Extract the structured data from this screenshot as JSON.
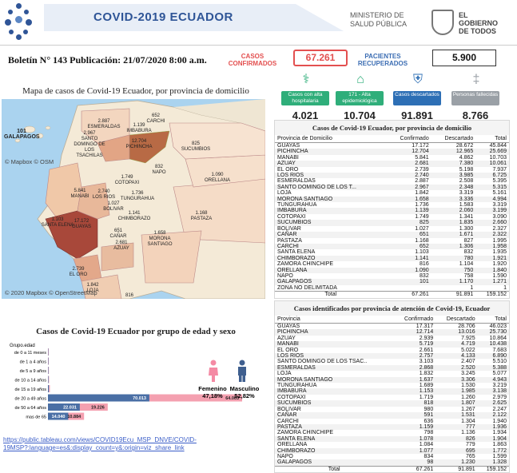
{
  "header": {
    "banner_title": "COVID-2019 ECUADOR",
    "ministry_line1": "MINISTERIO DE",
    "ministry_line2": "SALUD PÚBLICA",
    "gov_line1": "EL",
    "gov_line2": "GOBIERNO",
    "gov_line3": "DE TODOS",
    "bulletin": "Boletín N° 143  Publicación: 21/07/2020 8:00 a.m.",
    "casos_label": "CASOS CONFIRMADOS",
    "casos_value": "67.261",
    "recuperados_label": "PACIENTES RECUPERADOS",
    "recuperados_value": "5.900"
  },
  "stats": [
    {
      "label": "Casos con alta hospitalaria",
      "value": "4.021",
      "color": "#2fae7a",
      "icon": "hospital-icon"
    },
    {
      "label": "171 - Alta epidemiológica",
      "value": "10.704",
      "color": "#2fae7a",
      "icon": "home-icon"
    },
    {
      "label": "Casos descartados",
      "value": "91.891",
      "color": "#2d6fb5",
      "icon": "shield-icon"
    },
    {
      "label": "Personas fallecidas",
      "value": "8.766",
      "color": "#9aa0a6",
      "icon": "ribbon-icon"
    }
  ],
  "map": {
    "title": "Mapa de casos de Covid-19 Ecuador, por provincia de domicilio",
    "attribution_top": "© Mapbox © OSM",
    "attribution_bottom": "© 2020 Mapbox © OpenStreetMap",
    "labels": [
      {
        "name": "ESMERALDAS",
        "value": "2.887"
      },
      {
        "name": "CARCHI",
        "value": "652"
      },
      {
        "name": "IMBABURA",
        "value": "1.139"
      },
      {
        "name": "SUCUMBIOS",
        "value": "825"
      },
      {
        "name": "PICHINCHA",
        "value": "12.704"
      },
      {
        "name": "SANTO DOMINGO DE LOS TSACHILAS",
        "value": "2.967"
      },
      {
        "name": "NAPO",
        "value": "832"
      },
      {
        "name": "ORELLANA",
        "value": "1.090"
      },
      {
        "name": "MANABI",
        "value": "5.841"
      },
      {
        "name": "COTOPAXI",
        "value": "1.749"
      },
      {
        "name": "TUNGURAHUA",
        "value": "1.736"
      },
      {
        "name": "LOS RIOS",
        "value": "2.740"
      },
      {
        "name": "BOLIVAR",
        "value": "1.027"
      },
      {
        "name": "PASTAZA",
        "value": "1.168"
      },
      {
        "name": "GALAPAGOS",
        "value": "101"
      },
      {
        "name": "SANTA ELENA",
        "value": "1.103"
      },
      {
        "name": "GUAYAS",
        "value": "17.172"
      },
      {
        "name": "CHIMBORAZO",
        "value": "1.141"
      },
      {
        "name": "CAÑAR",
        "value": "651"
      },
      {
        "name": "MORONA SANTIAGO",
        "value": "1.658"
      },
      {
        "name": "AZUAY",
        "value": "2.681"
      },
      {
        "name": "EL ORO",
        "value": "2.739"
      },
      {
        "name": "LOJA",
        "value": "1.842"
      },
      {
        "name": "ZAMORA CHINCHIPE",
        "value": "816"
      }
    ]
  },
  "age_chart": {
    "title": "Casos de  Covid-19 Ecuador por grupo de edad y sexo",
    "group_header": "Grupo.edad",
    "female_label": "Femenino",
    "female_pct": "47,18%",
    "male_label": "Masculino",
    "male_pct": "52,82%",
    "chart_data": {
      "type": "bar",
      "categories": [
        "de 0 a 11 meses",
        "de 1 a 4 años",
        "de 5 a 9 años",
        "de 10 a 14 años",
        "de 15 a 19 años",
        "de 20 a 49 años",
        "de 50 a 64 años",
        "mas de 65"
      ],
      "series": [
        {
          "name": "Masculino",
          "color": "#4a6fa5",
          "values": [
            250,
            300,
            350,
            400,
            700,
            70013,
            22031,
            14040
          ]
        },
        {
          "name": "Femenino",
          "color": "#f4a0b0",
          "values": [
            200,
            250,
            300,
            380,
            650,
            64003,
            19226,
            10884
          ]
        }
      ],
      "data_labels": [
        "70.013",
        "64.003",
        "22.031",
        "19.226",
        "14.040",
        "10.884"
      ]
    }
  },
  "link": "https://public.tableau.com/views/COVID19Ecu_MSP_DNVE/COVID-19MSP?:language=es&:display_count=y&:origin=viz_share_link",
  "table1": {
    "title": "Casos de Covid-19 Ecuador,  por provincia de domicilio",
    "columns": [
      "Provincia de Domicilio",
      "Confirmado",
      "Descartado",
      "Total"
    ],
    "rows": [
      [
        "GUAYAS",
        "17.172",
        "28.672",
        "45.844"
      ],
      [
        "PICHINCHA",
        "12.704",
        "12.965",
        "25.669"
      ],
      [
        "MANABI",
        "5.841",
        "4.862",
        "10.703"
      ],
      [
        "AZUAY",
        "2.681",
        "7.380",
        "10.061"
      ],
      [
        "EL ORO",
        "2.739",
        "5.198",
        "7.937"
      ],
      [
        "LOS RIOS",
        "2.740",
        "3.985",
        "6.725"
      ],
      [
        "ESMERALDAS",
        "2.887",
        "2.508",
        "5.395"
      ],
      [
        "SANTO DOMINGO DE LOS T...",
        "2.967",
        "2.348",
        "5.315"
      ],
      [
        "LOJA",
        "1.842",
        "3.319",
        "5.161"
      ],
      [
        "MORONA SANTIAGO",
        "1.658",
        "3.336",
        "4.994"
      ],
      [
        "TUNGURAHUA",
        "1.736",
        "1.583",
        "3.319"
      ],
      [
        "IMBABURA",
        "1.139",
        "2.060",
        "3.199"
      ],
      [
        "COTOPAXI",
        "1.749",
        "1.341",
        "3.090"
      ],
      [
        "SUCUMBIOS",
        "825",
        "1.835",
        "2.660"
      ],
      [
        "BOLIVAR",
        "1.027",
        "1.300",
        "2.327"
      ],
      [
        "CAÑAR",
        "651",
        "1.671",
        "2.322"
      ],
      [
        "PASTAZA",
        "1.168",
        "827",
        "1.995"
      ],
      [
        "CARCHI",
        "652",
        "1.306",
        "1.958"
      ],
      [
        "SANTA ELENA",
        "1.103",
        "832",
        "1.935"
      ],
      [
        "CHIMBORAZO",
        "1.141",
        "780",
        "1.921"
      ],
      [
        "ZAMORA CHINCHIPE",
        "816",
        "1.104",
        "1.920"
      ],
      [
        "ORELLANA",
        "1.090",
        "750",
        "1.840"
      ],
      [
        "NAPO",
        "832",
        "758",
        "1.590"
      ],
      [
        "GALAPAGOS",
        "101",
        "1.170",
        "1.271"
      ],
      [
        "ZONA NO DELIMITADA",
        "",
        "1",
        "1"
      ]
    ],
    "total": [
      "Total",
      "67.261",
      "91.891",
      "159.152"
    ]
  },
  "table2": {
    "title": "Casos identificados por provincia de atención de Covid-19, Ecuador",
    "columns": [
      "Provincia",
      "Confirmado",
      "Descartado",
      "Total"
    ],
    "rows": [
      [
        "GUAYAS",
        "17.317",
        "28.706",
        "46.023"
      ],
      [
        "PICHINCHA",
        "12.714",
        "13.016",
        "25.730"
      ],
      [
        "AZUAY",
        "2.939",
        "7.925",
        "10.864"
      ],
      [
        "MANABI",
        "5.719",
        "4.719",
        "10.438"
      ],
      [
        "EL ORO",
        "2.661",
        "5.022",
        "7.683"
      ],
      [
        "LOS RIOS",
        "2.757",
        "4.133",
        "6.890"
      ],
      [
        "SANTO DOMINGO DE LOS TSAC..",
        "3.103",
        "2.407",
        "5.510"
      ],
      [
        "ESMERALDAS",
        "2.868",
        "2.520",
        "5.388"
      ],
      [
        "LOJA",
        "1.832",
        "3.245",
        "5.077"
      ],
      [
        "MORONA SANTIAGO",
        "1.637",
        "3.306",
        "4.943"
      ],
      [
        "TUNGURAHUA",
        "1.689",
        "1.530",
        "3.219"
      ],
      [
        "IMBABURA",
        "1.153",
        "1.985",
        "3.138"
      ],
      [
        "COTOPAXI",
        "1.719",
        "1.260",
        "2.979"
      ],
      [
        "SUCUMBIOS",
        "818",
        "1.807",
        "2.625"
      ],
      [
        "BOLIVAR",
        "980",
        "1.267",
        "2.247"
      ],
      [
        "CAÑAR",
        "591",
        "1.531",
        "2.122"
      ],
      [
        "CARCHI",
        "636",
        "1.304",
        "1.940"
      ],
      [
        "PASTAZA",
        "1.159",
        "777",
        "1.936"
      ],
      [
        "ZAMORA CHINCHIPE",
        "798",
        "1.136",
        "1.934"
      ],
      [
        "SANTA ELENA",
        "1.078",
        "826",
        "1.904"
      ],
      [
        "ORELLANA",
        "1.084",
        "779",
        "1.863"
      ],
      [
        "CHIMBORAZO",
        "1.077",
        "695",
        "1.772"
      ],
      [
        "NAPO",
        "834",
        "765",
        "1.599"
      ],
      [
        "GALAPAGOS",
        "98",
        "1.230",
        "1.328"
      ]
    ],
    "total": [
      "Total",
      "67.261",
      "91.891",
      "159.152"
    ]
  }
}
